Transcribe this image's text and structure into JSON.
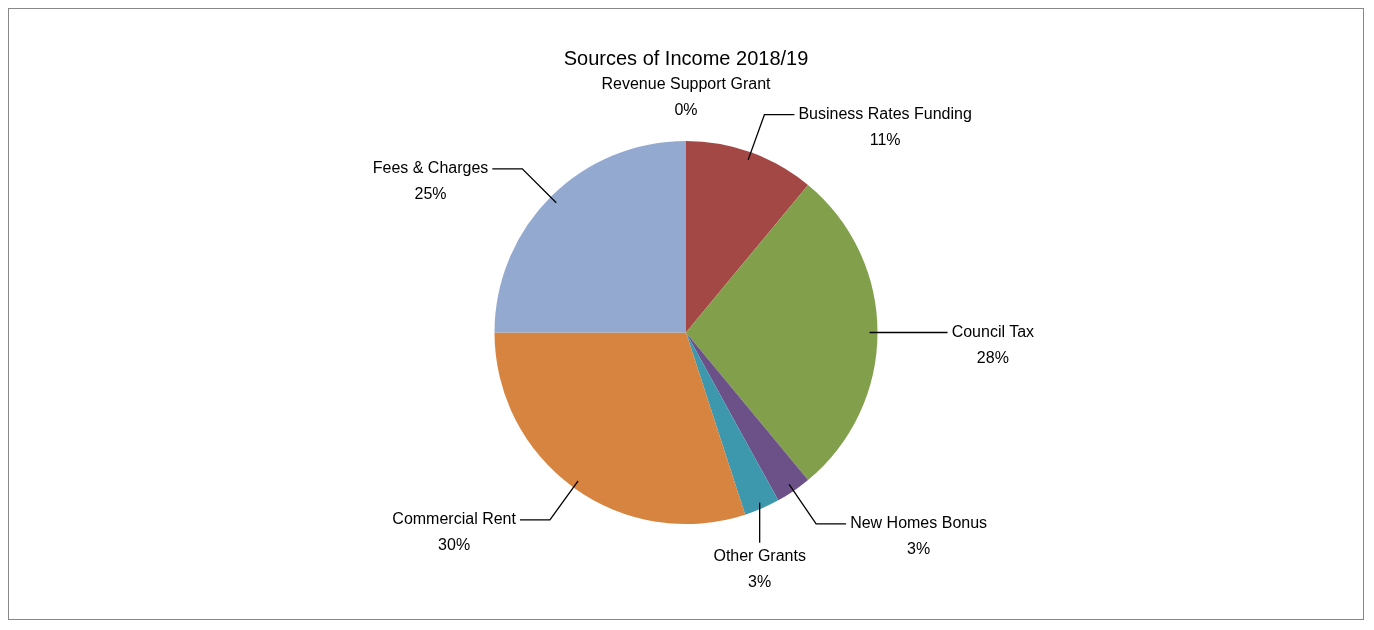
{
  "chart_data": {
    "type": "pie",
    "title": "Sources of Income 2018/19",
    "categories": [
      "Revenue Support Grant",
      "Business Rates Funding",
      "Council Tax",
      "New Homes Bonus",
      "Other Grants",
      "Commercial Rent",
      "Fees & Charges"
    ],
    "values": [
      0,
      11,
      28,
      3,
      3,
      30,
      25
    ],
    "value_labels": [
      "0%",
      "11%",
      "28%",
      "3%",
      "3%",
      "30%",
      "25%"
    ],
    "colors": [
      "#4f81bd",
      "#a44846",
      "#82a04c",
      "#6b5188",
      "#3d97ad",
      "#d6843f",
      "#93a9cf"
    ],
    "legend": false
  }
}
